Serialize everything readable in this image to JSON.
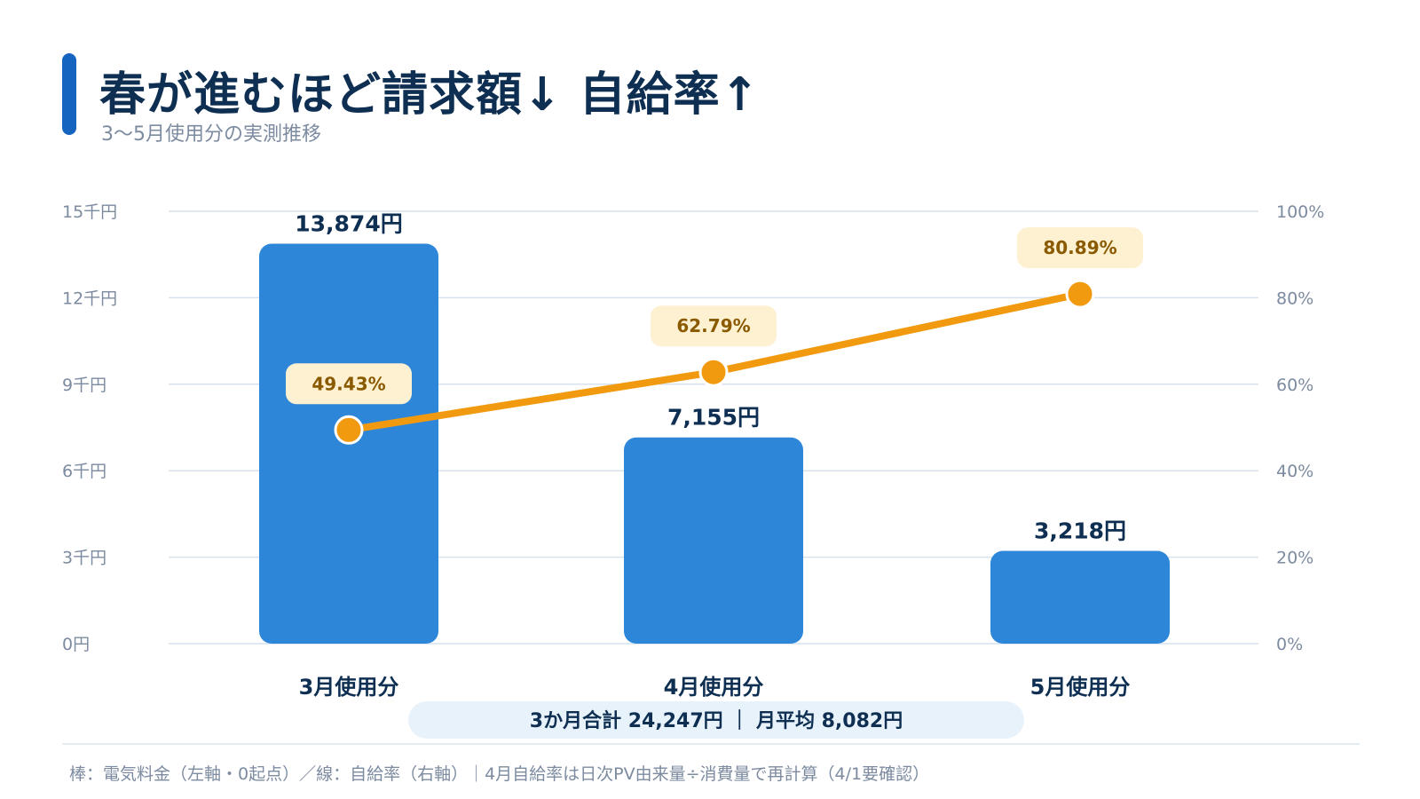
{
  "header": {
    "title": "春が進むほど請求額↓ 自給率↑",
    "subtitle": "3〜5月使用分の実測推移"
  },
  "chart_data": {
    "type": "bar",
    "categories": [
      "3月使用分",
      "4月使用分",
      "5月使用分"
    ],
    "series": [
      {
        "type": "bar",
        "axis": "left",
        "values": [
          13874,
          7155,
          3218
        ],
        "value_labels": [
          "13,874円",
          "7,155円",
          "3,218円"
        ],
        "color": "#2e86d8"
      },
      {
        "type": "line",
        "axis": "right",
        "values": [
          49.43,
          62.79,
          80.89
        ],
        "value_labels": [
          "49.43%",
          "62.79%",
          "80.89%"
        ],
        "color": "#f29a0f"
      }
    ],
    "y_left": {
      "ylim": [
        0,
        15000
      ],
      "ticks": [
        0,
        3000,
        6000,
        9000,
        12000,
        15000
      ],
      "tick_labels": [
        "0円",
        "3千円",
        "6千円",
        "9千円",
        "12千円",
        "15千円"
      ]
    },
    "y_right": {
      "ylim": [
        0,
        100
      ],
      "ticks": [
        0,
        20,
        40,
        60,
        80,
        100
      ],
      "tick_labels": [
        "0%",
        "20%",
        "40%",
        "60%",
        "80%",
        "100%"
      ]
    },
    "grid": true,
    "summary": "3か月合計 24,247円 ｜ 月平均 8,082円"
  },
  "footnote": "棒：電気料金（左軸・0起点）／線：自給率（右軸）｜4月自給率は日次PV由来量÷消費量で再計算（4/1要確認）",
  "colors": {
    "accent": "#1565c0",
    "title": "#0e2f52",
    "muted": "#7c8ba0",
    "bar": "#2e86d8",
    "line": "#f29a0f",
    "label_bg": "#fdf1d2",
    "label_text": "#8a5a00",
    "summary_bg": "#e8f2fb",
    "grid": "#d6e2ee"
  }
}
